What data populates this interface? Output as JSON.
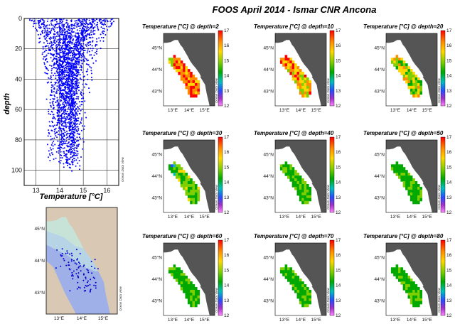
{
  "figure_title": "FOOS April 2014 - Ismar CNR Ancona",
  "watermark": "Ocean Data View",
  "chart_data": [
    {
      "type": "scatter",
      "name": "profiles",
      "color": "#0000ff",
      "xlabel": "Temperature [°C]",
      "ylabel": "depth",
      "xlim": [
        12.5,
        16.5
      ],
      "ylim": [
        0,
        110
      ],
      "y_inverted": true,
      "xticks": [
        "13",
        "14",
        "15",
        "16"
      ],
      "yticks": [
        "0",
        "20",
        "40",
        "60",
        "80",
        "100"
      ],
      "grid": true
    },
    {
      "type": "map",
      "name": "station-map",
      "lat_labels": [
        "45°N",
        "44°N",
        "43°N"
      ],
      "lon_labels": [
        "13°E",
        "14°E",
        "15°E"
      ],
      "station_color": "#0000cc"
    },
    {
      "type": "heatmap",
      "name": "temperature-maps",
      "colorbar": {
        "min": 12,
        "max": 17,
        "ticks": [
          "17",
          "16",
          "15",
          "14",
          "13",
          "12"
        ],
        "colors": [
          "#ff0000",
          "#ff8c00",
          "#ffd700",
          "#7fcf00",
          "#00a800",
          "#00bfbf",
          "#2a4bff",
          "#a030c8",
          "#ff88ff"
        ]
      },
      "lat_labels": [
        "45°N",
        "44°N",
        "43°N"
      ],
      "lon_labels": [
        "13°E",
        "14°E",
        "15°E"
      ],
      "panels": [
        {
          "title": "Temperature [°C] @ depth=2",
          "depth": 2
        },
        {
          "title": "Temperature [°C] @ depth=10",
          "depth": 10
        },
        {
          "title": "Temperature [°C] @ depth=20",
          "depth": 20
        },
        {
          "title": "Temperature [°C] @ depth=30",
          "depth": 30
        },
        {
          "title": "Temperature [°C] @ depth=40",
          "depth": 40
        },
        {
          "title": "Temperature [°C] @ depth=50",
          "depth": 50
        },
        {
          "title": "Temperature [°C] @ depth=60",
          "depth": 60
        },
        {
          "title": "Temperature [°C] @ depth=70",
          "depth": 70
        },
        {
          "title": "Temperature [°C] @ depth=80",
          "depth": 80
        }
      ]
    }
  ]
}
